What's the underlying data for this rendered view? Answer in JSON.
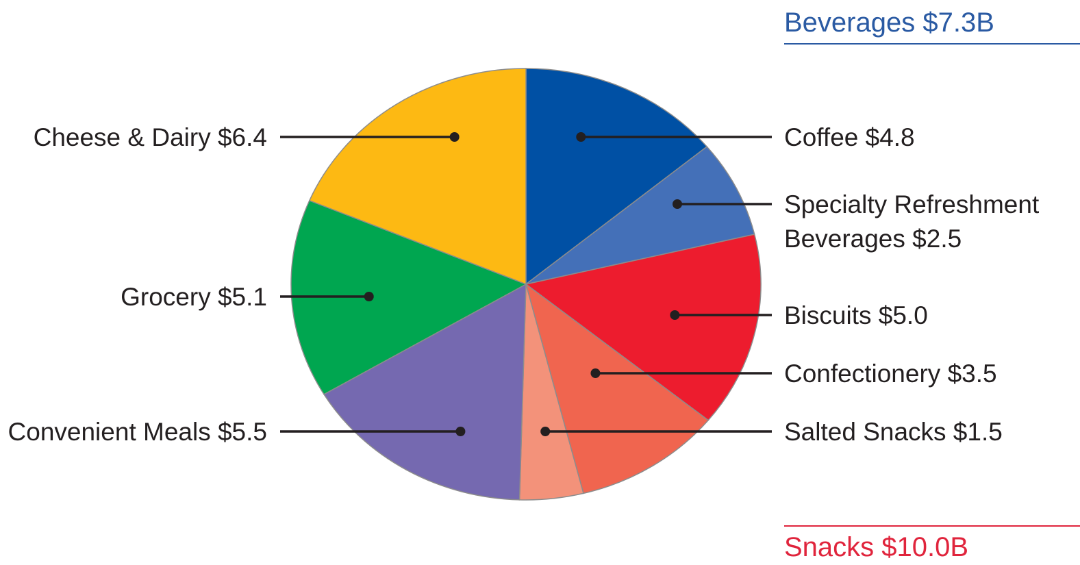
{
  "chart_data": {
    "type": "pie",
    "title": "",
    "slices": [
      {
        "label": "Coffee $4.8",
        "value": 4.8,
        "color": "#0050a4"
      },
      {
        "label": "Specialty Refreshment Beverages $2.5",
        "lines": [
          "Specialty Refreshment",
          "Beverages $2.5"
        ],
        "value": 2.5,
        "color": "#4470b8"
      },
      {
        "label": "Biscuits $5.0",
        "value": 5.0,
        "color": "#ed1c2e"
      },
      {
        "label": "Confectionery $3.5",
        "value": 3.5,
        "color": "#f0654f"
      },
      {
        "label": "Salted Snacks $1.5",
        "value": 1.5,
        "color": "#f3927a"
      },
      {
        "label": "Convenient Meals $5.5",
        "value": 5.5,
        "color": "#7569b0"
      },
      {
        "label": "Grocery $5.1",
        "value": 5.1,
        "color": "#00a650"
      },
      {
        "label": "Cheese & Dairy $6.4",
        "value": 6.4,
        "color": "#fdb913"
      }
    ],
    "groups": [
      {
        "label": "Beverages $7.3B",
        "color": "#2a5aa3"
      },
      {
        "label": "Snacks $10.0B",
        "color": "#e0243c"
      }
    ]
  }
}
